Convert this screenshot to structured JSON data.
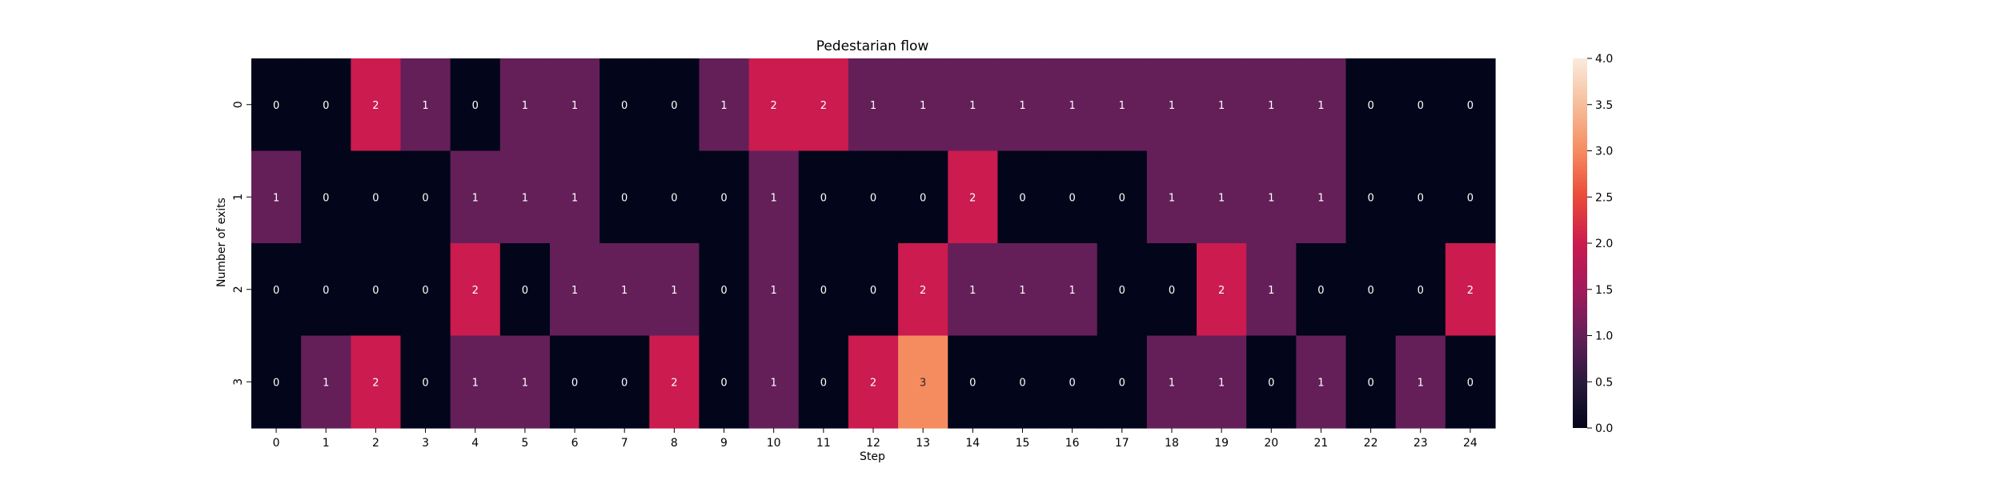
{
  "chart_data": {
    "type": "heatmap",
    "title": "Pedestarian flow",
    "xlabel": "Step",
    "ylabel": "Number of exits",
    "x": [
      0,
      1,
      2,
      3,
      4,
      5,
      6,
      7,
      8,
      9,
      10,
      11,
      12,
      13,
      14,
      15,
      16,
      17,
      18,
      19,
      20,
      21,
      22,
      23,
      24
    ],
    "y": [
      0,
      1,
      2,
      3
    ],
    "values": [
      [
        0,
        0,
        2,
        1,
        0,
        1,
        1,
        0,
        0,
        1,
        2,
        2,
        1,
        1,
        1,
        1,
        1,
        1,
        1,
        1,
        1,
        1,
        0,
        0,
        0
      ],
      [
        1,
        0,
        0,
        0,
        1,
        1,
        1,
        0,
        0,
        0,
        1,
        0,
        0,
        0,
        2,
        0,
        0,
        0,
        1,
        1,
        1,
        1,
        0,
        0,
        0
      ],
      [
        0,
        0,
        0,
        0,
        2,
        0,
        1,
        1,
        1,
        0,
        1,
        0,
        0,
        2,
        1,
        1,
        1,
        0,
        0,
        2,
        1,
        0,
        0,
        0,
        2
      ],
      [
        0,
        1,
        2,
        0,
        1,
        1,
        0,
        0,
        2,
        0,
        1,
        0,
        2,
        3,
        0,
        0,
        0,
        0,
        1,
        1,
        0,
        1,
        0,
        1,
        0
      ]
    ],
    "colorbar": {
      "min": 0,
      "max": 4,
      "ticks": [
        "0.0",
        "0.5",
        "1.0",
        "1.5",
        "2.0",
        "2.5",
        "3.0",
        "3.5",
        "4.0"
      ],
      "colormap": "rocket"
    },
    "annotations": true,
    "grid": false
  }
}
